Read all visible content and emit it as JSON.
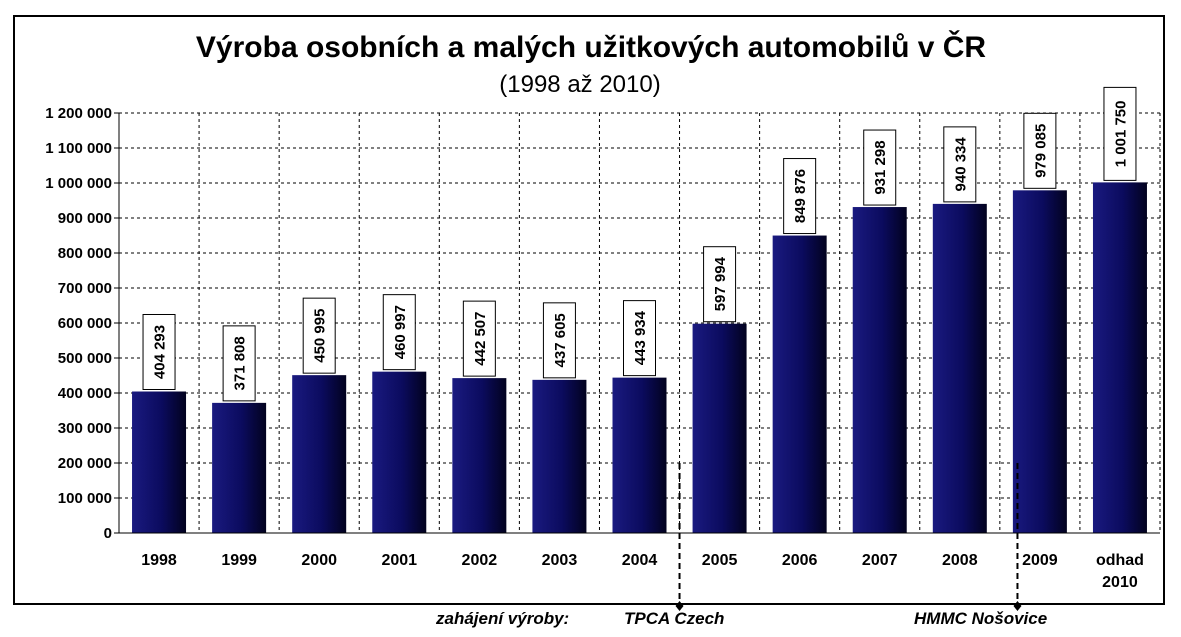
{
  "chart_data": {
    "type": "bar",
    "title": "Výroba osobních a malých užitkových automobilů v ČR",
    "subtitle": "(1998 až 2010)",
    "categories": [
      "1998",
      "1999",
      "2000",
      "2001",
      "2002",
      "2003",
      "2004",
      "2005",
      "2006",
      "2007",
      "2008",
      "2009",
      "odhad 2010"
    ],
    "values": [
      404293,
      371808,
      450995,
      460997,
      442507,
      437605,
      443934,
      597994,
      849876,
      931298,
      940334,
      979085,
      1001750
    ],
    "value_labels": [
      "404 293",
      "371 808",
      "450 995",
      "460 997",
      "442 507",
      "437 605",
      "443 934",
      "597 994",
      "849 876",
      "931 298",
      "940 334",
      "979 085",
      "1 001 750"
    ],
    "ylim": [
      0,
      1200000
    ],
    "y_ticks": [
      0,
      100000,
      200000,
      300000,
      400000,
      500000,
      600000,
      700000,
      800000,
      900000,
      1000000,
      1100000,
      1200000
    ],
    "y_tick_labels": [
      "0",
      "100 000",
      "200 000",
      "300 000",
      "400 000",
      "500 000",
      "600 000",
      "700 000",
      "800 000",
      "900 000",
      "1 000 000",
      "1 100 000",
      "1 200 000"
    ],
    "grid": true,
    "bar_color": "#0b0b5e",
    "annotations": {
      "prefix": "zahájení výroby:",
      "tpca": "TPCA Czech",
      "hmmc": "HMMC Nošovice"
    }
  }
}
